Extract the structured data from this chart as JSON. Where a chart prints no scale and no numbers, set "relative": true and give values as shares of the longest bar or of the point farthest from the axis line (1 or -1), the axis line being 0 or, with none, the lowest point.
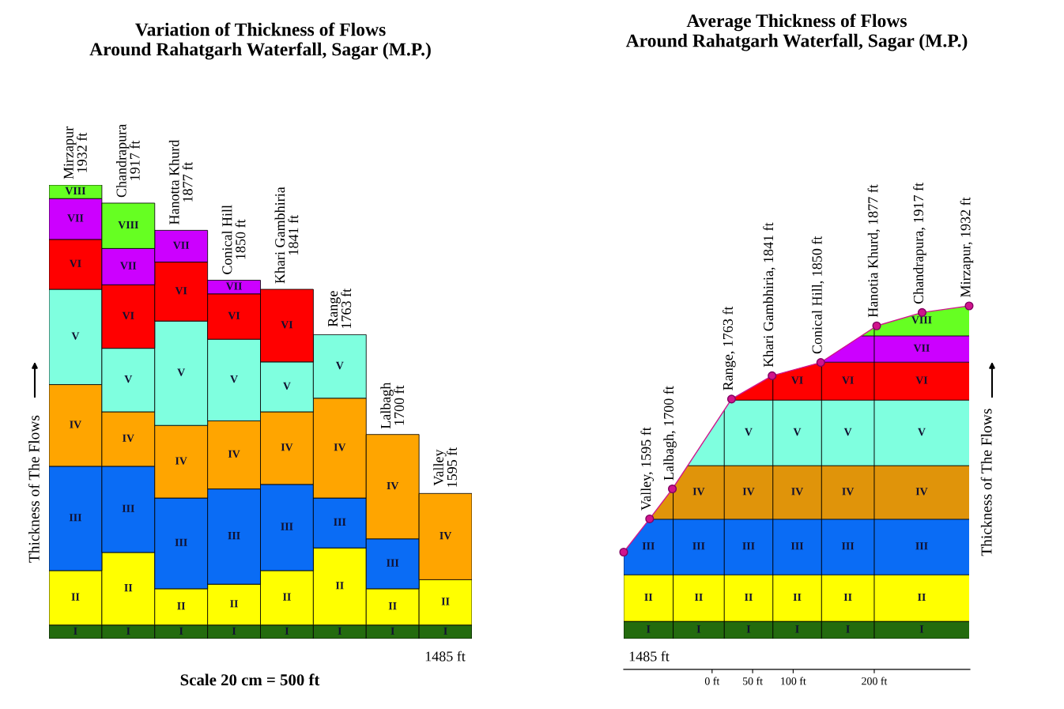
{
  "chart_data": [
    {
      "type": "bar",
      "title": "Variation of Thickness of Flows\nAround Rahatgarh Waterfall, Sagar (M.P.)",
      "ylabel": "Thickness of The Flows",
      "categories": [
        "Mirzapur\n1932 ft",
        "Chandrapura\n1917 ft",
        "Hanotta Khurd\n1877 ft",
        "Conical Hill\n1850 ft",
        "Khari Gambhiria\n1841 ft",
        "Range\n1763 ft",
        "Lalbagh\n1700 ft",
        "Valley\n1595 ft"
      ],
      "stacked": true,
      "relative": true,
      "tick_labels": false,
      "series": [
        {
          "name": "I",
          "color": "#236b0e",
          "values": [
            0.03,
            0.03,
            0.03,
            0.03,
            0.03,
            0.03,
            0.03,
            0.03
          ]
        },
        {
          "name": "II",
          "color": "#ffff00",
          "values": [
            0.12,
            0.16,
            0.08,
            0.09,
            0.12,
            0.17,
            0.08,
            0.1
          ]
        },
        {
          "name": "III",
          "color": "#0a6cf5",
          "values": [
            0.23,
            0.19,
            0.2,
            0.21,
            0.19,
            0.11,
            0.11,
            null
          ]
        },
        {
          "name": "IV",
          "color": "#ffa500",
          "values": [
            0.18,
            0.12,
            0.16,
            0.15,
            0.16,
            0.22,
            0.23,
            0.19
          ]
        },
        {
          "name": "V",
          "color": "#7fffdf",
          "values": [
            0.21,
            0.14,
            0.23,
            0.18,
            0.11,
            0.14,
            null,
            null
          ]
        },
        {
          "name": "VI",
          "color": "#ff0000",
          "values": [
            0.11,
            0.14,
            0.13,
            0.1,
            0.16,
            null,
            null,
            null
          ]
        },
        {
          "name": "VII",
          "color": "#cc00ff",
          "values": [
            0.09,
            0.08,
            0.07,
            0.03,
            null,
            null,
            null,
            null
          ]
        },
        {
          "name": "VIII",
          "color": "#66ff22",
          "values": [
            0.03,
            0.1,
            null,
            null,
            null,
            null,
            null,
            null
          ]
        }
      ],
      "annotations": [
        "1485 ft",
        "Scale 20 cm = 500 ft"
      ]
    },
    {
      "type": "line",
      "title": "Average Thickness of Flows\nAround Rahatgarh Waterfall, Sagar (M.P.)",
      "ylabel": "Thickness of The Flows",
      "relative": true,
      "tick_labels": "x",
      "marker": "circle",
      "line_style": "solid",
      "xlim": [
        -109,
        318
      ],
      "xticks": [
        {
          "value": 0,
          "label": "0 ft"
        },
        {
          "value": 50,
          "label": "50 ft"
        },
        {
          "value": 100,
          "label": "100 ft"
        },
        {
          "value": 200,
          "label": "200 ft"
        }
      ],
      "series": [
        {
          "color": "#d0148c",
          "x": [
            -109,
            -77,
            -49,
            24,
            74,
            134,
            203,
            259,
            317
          ],
          "values": [
            0.26,
            0.36,
            0.45,
            0.72,
            0.79,
            0.83,
            0.94,
            0.98,
            1.0
          ]
        }
      ],
      "bands": [
        {
          "axis": "y",
          "from": 0,
          "to": 0.052,
          "label": "I",
          "color": "#236b0e"
        },
        {
          "axis": "y",
          "from": 0.052,
          "to": 0.192,
          "label": "II",
          "color": "#ffff00"
        },
        {
          "axis": "y",
          "from": 0.192,
          "to": 0.359,
          "label": "III",
          "color": "#0a6cf5"
        },
        {
          "axis": "y",
          "from": 0.359,
          "to": 0.52,
          "label": "IV",
          "color": "#e0940a"
        },
        {
          "axis": "y",
          "from": 0.52,
          "to": 0.717,
          "label": "V",
          "color": "#7fffdf"
        },
        {
          "axis": "y",
          "from": 0.717,
          "to": 0.831,
          "label": "VI",
          "color": "#ff0000"
        },
        {
          "axis": "y",
          "from": 0.831,
          "to": 0.91,
          "label": "VII",
          "color": "#cc00ff"
        },
        {
          "axis": "y",
          "from": 0.91,
          "to": 1.0,
          "label": "VIII",
          "color": "#66ff22"
        }
      ],
      "ref_lines": [
        {
          "axis": "x",
          "value": -48,
          "color": "#000000"
        },
        {
          "axis": "x",
          "value": 15,
          "color": "#000000"
        },
        {
          "axis": "x",
          "value": 75,
          "color": "#000000"
        },
        {
          "axis": "x",
          "value": 135,
          "color": "#000000"
        },
        {
          "axis": "x",
          "value": 200,
          "color": "#000000"
        }
      ],
      "annotations": [
        {
          "text": "Valley, 1595 ft",
          "x": -77,
          "y": 0.36
        },
        {
          "text": "Lalbagh, 1700 ft",
          "x": -49,
          "y": 0.45
        },
        {
          "text": "Range, 1763 ft",
          "x": 24,
          "y": 0.72
        },
        {
          "text": "Khari Gambhiria, 1841 ft",
          "x": 74,
          "y": 0.79
        },
        {
          "text": "Conical Hill, 1850 ft",
          "x": 134,
          "y": 0.83
        },
        {
          "text": "Hanotia Khurd, 1877 ft",
          "x": 203,
          "y": 0.94
        },
        {
          "text": "Chandrapura, 1917 ft",
          "x": 259,
          "y": 0.98
        },
        {
          "text": "Mirzapur, 1932 ft",
          "x": 317,
          "y": 1.0
        },
        "1485 ft"
      ]
    }
  ]
}
